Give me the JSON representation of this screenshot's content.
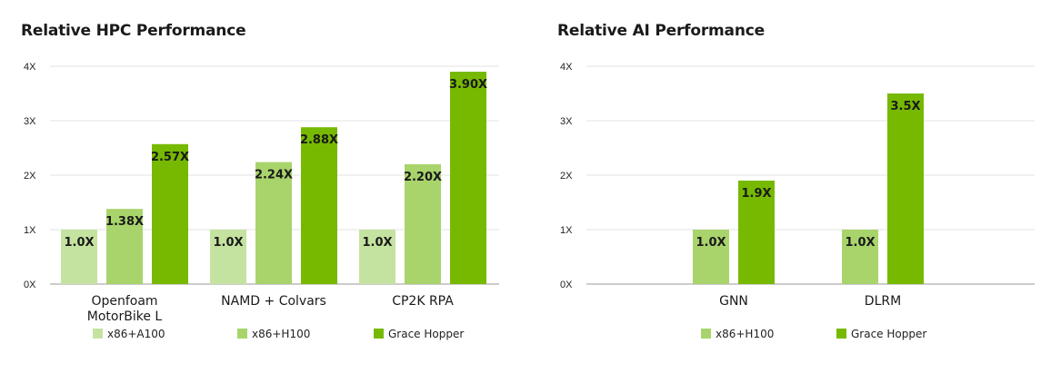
{
  "chart_data": [
    {
      "type": "bar",
      "title": "Relative HPC Performance",
      "categories": [
        "Openfoam\nMotorBike L",
        "NAMD + Colvars",
        "CP2K RPA"
      ],
      "series": [
        {
          "name": "x86+A100",
          "color": "#c5e3a0",
          "values": [
            1.0,
            1.0,
            1.0
          ],
          "labels": [
            "1.0X",
            "1.0X",
            "1.0X"
          ]
        },
        {
          "name": "x86+H100",
          "color": "#a8d46b",
          "values": [
            1.38,
            2.24,
            2.2
          ],
          "labels": [
            "1.38X",
            "2.24X",
            "2.20X"
          ]
        },
        {
          "name": "Grace Hopper",
          "color": "#76b900",
          "values": [
            2.57,
            2.88,
            3.9
          ],
          "labels": [
            "2.57X",
            "2.88X",
            "3.90X"
          ]
        }
      ],
      "ylim": [
        0,
        4
      ],
      "yticks": [
        "0X",
        "1X",
        "2X",
        "3X",
        "4X"
      ],
      "grid": true,
      "legend": "bottom"
    },
    {
      "type": "bar",
      "title": "Relative AI Performance",
      "categories": [
        "GNN",
        "DLRM"
      ],
      "series": [
        {
          "name": "x86+H100",
          "color": "#a8d46b",
          "values": [
            1.0,
            1.0
          ],
          "labels": [
            "1.0X",
            "1.0X"
          ]
        },
        {
          "name": "Grace Hopper",
          "color": "#76b900",
          "values": [
            1.9,
            3.5
          ],
          "labels": [
            "1.9X",
            "3.5X"
          ]
        }
      ],
      "ylim": [
        0,
        4
      ],
      "yticks": [
        "0X",
        "1X",
        "2X",
        "3X",
        "4X"
      ],
      "grid": true,
      "legend": "bottom"
    }
  ]
}
